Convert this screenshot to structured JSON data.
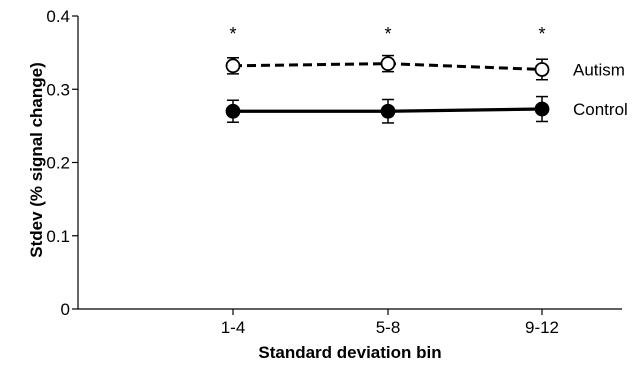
{
  "chart_data": {
    "type": "line",
    "title": "",
    "xlabel": "Standard deviation bin",
    "ylabel": "Stdev (% signal change)",
    "categories": [
      "1-4",
      "5-8",
      "9-12"
    ],
    "ylim": [
      0,
      0.4
    ],
    "yticks": [
      0,
      0.1,
      0.2,
      0.3,
      0.4
    ],
    "ytick_labels": [
      "0",
      "0.1",
      "0.2",
      "0.3",
      "0.4"
    ],
    "grid": false,
    "legend": "direct labels at right end of lines",
    "series": [
      {
        "name": "Autism",
        "values": [
          0.332,
          0.335,
          0.327
        ],
        "errors": [
          0.011,
          0.011,
          0.014
        ],
        "line_style": "dashed",
        "marker": "open-circle",
        "color": "#000000"
      },
      {
        "name": "Control",
        "values": [
          0.27,
          0.27,
          0.273
        ],
        "errors": [
          0.015,
          0.016,
          0.017
        ],
        "line_style": "solid",
        "marker": "filled-circle",
        "color": "#000000"
      }
    ],
    "significance": [
      "*",
      "*",
      "*"
    ]
  }
}
